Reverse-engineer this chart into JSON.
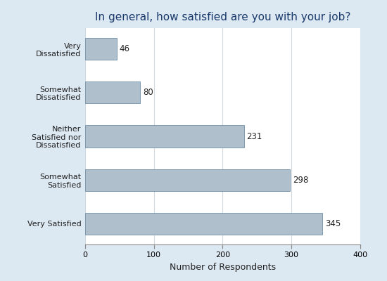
{
  "title": "In general, how satisfied are you with your job?",
  "categories": [
    "Very Satisfied",
    "Somewhat\nSatisfied",
    "Neither\nSatisfied nor\nDissatisfied",
    "Somewhat\nDissatisfied",
    "Very\nDissatisfied"
  ],
  "values": [
    345,
    298,
    231,
    80,
    46
  ],
  "bar_color": "#b0bfcc",
  "bar_edge_color": "#7090aa",
  "xlabel": "Number of Respondents",
  "xlim": [
    0,
    400
  ],
  "xticks": [
    0,
    100,
    200,
    300,
    400
  ],
  "background_color": "#dce8f2",
  "plot_bg_color": "#ffffff",
  "title_color": "#1a3a6b",
  "label_color": "#222222",
  "title_fontsize": 11,
  "xlabel_fontsize": 9,
  "tick_fontsize": 8,
  "bar_label_fontsize": 8.5,
  "grid_color": "#d0d8e0"
}
